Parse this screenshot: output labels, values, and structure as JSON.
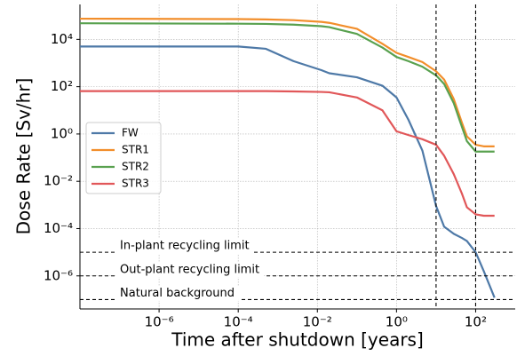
{
  "chart_data": {
    "type": "line",
    "log_x": true,
    "log_y": true,
    "grid": true,
    "legend": "center left",
    "xlabel": "Time after shutdown [years]",
    "ylabel": "Dose Rate [Sv/hr]",
    "xlim": [
      1e-08,
      1000
    ],
    "ylim": [
      4e-08,
      300000
    ],
    "xticks": [
      {
        "value": 1e-06,
        "label": "10⁻⁶"
      },
      {
        "value": 0.0001,
        "label": "10⁻⁴"
      },
      {
        "value": 0.01,
        "label": "10⁻²"
      },
      {
        "value": 1,
        "label": "10⁰"
      },
      {
        "value": 100,
        "label": "10²"
      }
    ],
    "yticks": [
      {
        "value": 1e-06,
        "label": "10⁻⁶"
      },
      {
        "value": 0.0001,
        "label": "10⁻⁴"
      },
      {
        "value": 0.01,
        "label": "10⁻²"
      },
      {
        "value": 1,
        "label": "10⁰"
      },
      {
        "value": 100,
        "label": "10²"
      },
      {
        "value": 10000,
        "label": "10⁴"
      }
    ],
    "x": [
      1e-08,
      0.0001,
      0.0005,
      0.0025,
      0.0126,
      0.02,
      0.1,
      0.44,
      1,
      2,
      4.5,
      10,
      16,
      28,
      45,
      60,
      100,
      160,
      300
    ],
    "series": [
      {
        "name": "FW",
        "color": "#4e79a7",
        "values": [
          5000,
          5000,
          4000,
          1200,
          500,
          370,
          250,
          110,
          35,
          4,
          0.2,
          0.0009,
          0.00012,
          6e-05,
          4e-05,
          3e-05,
          1e-05,
          1.6e-06,
          1.2e-07
        ]
      },
      {
        "name": "STR1",
        "color": "#f28e2b",
        "values": [
          75000,
          72000,
          70000,
          65000,
          55000,
          50000,
          28000,
          6500,
          2700,
          1800,
          1100,
          450,
          200,
          30,
          3,
          0.8,
          0.35,
          0.3,
          0.3
        ]
      },
      {
        "name": "STR2",
        "color": "#59a14f",
        "values": [
          48000,
          46000,
          45000,
          42000,
          36000,
          33000,
          17000,
          4500,
          1800,
          1200,
          700,
          300,
          130,
          20,
          2,
          0.5,
          0.18,
          0.18,
          0.18
        ]
      },
      {
        "name": "STR3",
        "color": "#e15759",
        "values": [
          65,
          65,
          65,
          63,
          60,
          58,
          35,
          10,
          1.3,
          0.9,
          0.6,
          0.35,
          0.12,
          0.02,
          0.003,
          0.0008,
          0.0004,
          0.00035,
          0.00035
        ]
      }
    ],
    "hlines": [
      {
        "value": 1e-05,
        "label": "In-plant recycling limit"
      },
      {
        "value": 1e-06,
        "label": "Out-plant recycling limit"
      },
      {
        "value": 1e-07,
        "label": "Natural background"
      }
    ],
    "vlines": [
      10,
      100
    ]
  }
}
